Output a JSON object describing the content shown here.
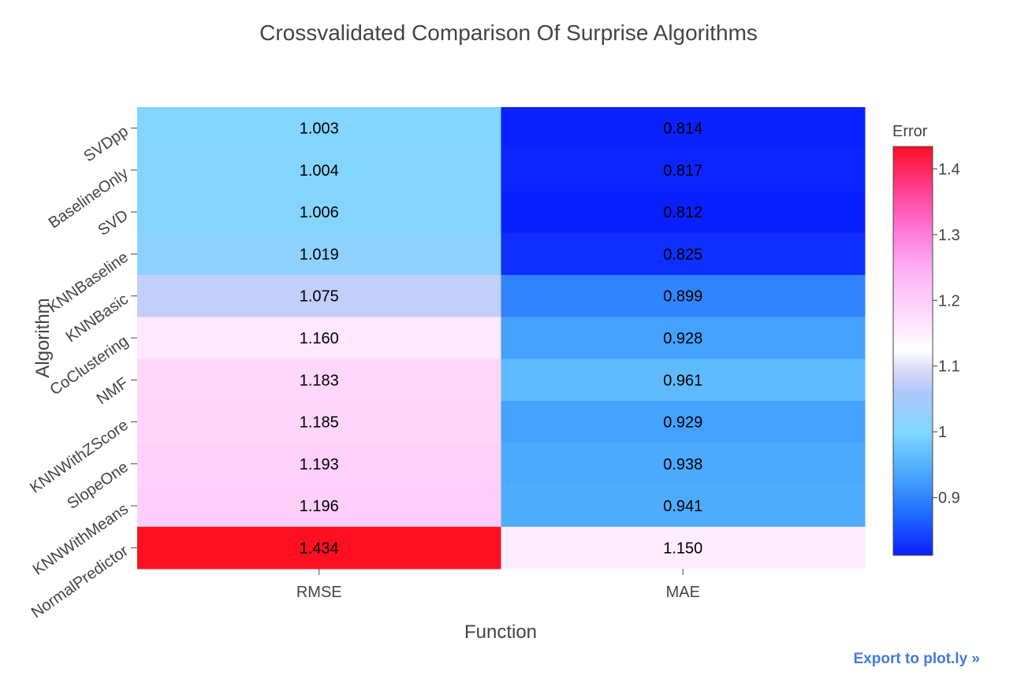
{
  "chart_data": {
    "type": "heatmap",
    "title": "Crossvalidated Comparison Of Surprise Algorithms",
    "xlabel": "Function",
    "ylabel": "Algorithm",
    "x": [
      "RMSE",
      "MAE"
    ],
    "y": [
      "SVDpp",
      "BaselineOnly",
      "SVD",
      "KNNBaseline",
      "KNNBasic",
      "CoClustering",
      "NMF",
      "KNNWithZScore",
      "SlopeOne",
      "KNNWithMeans",
      "NormalPredictor"
    ],
    "z": [
      [
        1.003,
        0.814
      ],
      [
        1.004,
        0.817
      ],
      [
        1.006,
        0.812
      ],
      [
        1.019,
        0.825
      ],
      [
        1.075,
        0.899
      ],
      [
        1.16,
        0.928
      ],
      [
        1.183,
        0.961
      ],
      [
        1.185,
        0.929
      ],
      [
        1.193,
        0.938
      ],
      [
        1.196,
        0.941
      ],
      [
        1.434,
        1.15
      ]
    ],
    "annotations": [
      [
        "1.003",
        "0.814"
      ],
      [
        "1.004",
        "0.817"
      ],
      [
        "1.006",
        "0.812"
      ],
      [
        "1.019",
        "0.825"
      ],
      [
        "1.075",
        "0.899"
      ],
      [
        "1.160",
        "0.928"
      ],
      [
        "1.183",
        "0.961"
      ],
      [
        "1.185",
        "0.929"
      ],
      [
        "1.193",
        "0.938"
      ],
      [
        "1.196",
        "0.941"
      ],
      [
        "1.434",
        "1.150"
      ]
    ],
    "zmin": 0.812,
    "zmax": 1.434,
    "colorscale": [
      [
        0.0,
        "#0a1fff"
      ],
      [
        0.1,
        "#1f6bff"
      ],
      [
        0.2,
        "#4aa9fc"
      ],
      [
        0.3,
        "#7fd6fe"
      ],
      [
        0.4,
        "#b0c8fb"
      ],
      [
        0.45,
        "#d6d8f7"
      ],
      [
        0.5,
        "#ffffff"
      ],
      [
        0.6,
        "#ffd6fb"
      ],
      [
        0.7,
        "#fdb0f5"
      ],
      [
        0.8,
        "#ff74d6"
      ],
      [
        0.9,
        "#ff3d8c"
      ],
      [
        1.0,
        "#fe0f22"
      ]
    ],
    "colorbar": {
      "title": "Error",
      "tickvals": [
        0.9,
        1.0,
        1.1,
        1.2,
        1.3,
        1.4
      ],
      "ticktext": [
        "0.9",
        "1",
        "1.1",
        "1.2",
        "1.3",
        "1.4"
      ]
    }
  },
  "export_link": "Export to plot.ly »"
}
